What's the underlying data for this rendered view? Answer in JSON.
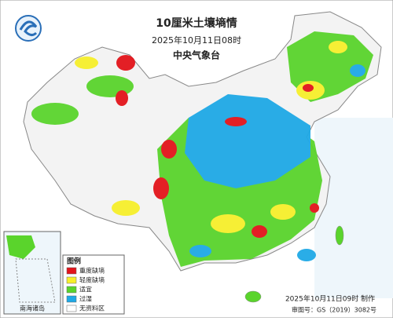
{
  "header": {
    "title": "10厘米土壤墒情",
    "time": "2025年10月11日08时",
    "agency": "中央气象台"
  },
  "legend": {
    "title": "图例",
    "items": [
      {
        "label": "重度缺墒",
        "color": "#e3141b"
      },
      {
        "label": "轻度缺墒",
        "color": "#f7ef2b"
      },
      {
        "label": "适宜",
        "color": "#5ad42c"
      },
      {
        "label": "过湿",
        "color": "#1fa9e6"
      },
      {
        "label": "无资料区",
        "color": "#ffffff"
      }
    ]
  },
  "inset": {
    "label": "南海诸岛"
  },
  "footer": {
    "made": "2025年10月11日09时 制作",
    "review": "审图号：GS（2019）3082号"
  }
}
